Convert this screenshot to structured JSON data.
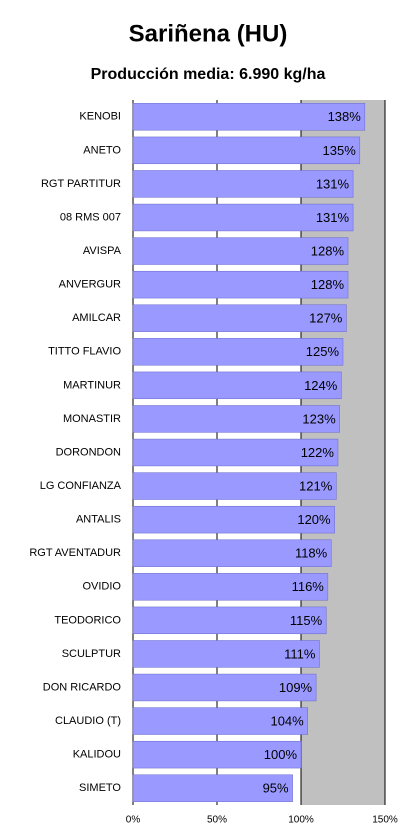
{
  "chart_data": {
    "type": "bar",
    "orientation": "horizontal",
    "title": "Sariñena (HU)",
    "subtitle": "Producción media: 6.990 kg/ha",
    "categories": [
      "KENOBI",
      "ANETO",
      "RGT PARTITUR",
      "08 RMS 007",
      "AVISPA",
      "ANVERGUR",
      "AMILCAR",
      "TITTO FLAVIO",
      "MARTINUR",
      "MONASTIR",
      "DORONDON",
      "LG CONFIANZA",
      "ANTALIS",
      "RGT AVENTADUR",
      "OVIDIO",
      "TEODORICO",
      "SCULPTUR",
      "DON RICARDO",
      "CLAUDIO (T)",
      "KALIDOU",
      "SIMETO"
    ],
    "values": [
      138,
      135,
      131,
      131,
      128,
      128,
      127,
      125,
      124,
      123,
      122,
      121,
      120,
      118,
      116,
      115,
      111,
      109,
      104,
      100,
      95
    ],
    "value_labels": [
      "138%",
      "135%",
      "131%",
      "131%",
      "128%",
      "128%",
      "127%",
      "125%",
      "124%",
      "123%",
      "122%",
      "121%",
      "120%",
      "118%",
      "116%",
      "115%",
      "111%",
      "109%",
      "104%",
      "100%",
      "95%"
    ],
    "color": "#9999ff",
    "xlim": [
      0,
      150
    ],
    "xticks": [
      {
        "value": 0,
        "label": "0%"
      },
      {
        "value": 50,
        "label": "50%"
      },
      {
        "value": 100,
        "label": "100%"
      },
      {
        "value": 150,
        "label": "150%"
      }
    ],
    "grid": true
  }
}
